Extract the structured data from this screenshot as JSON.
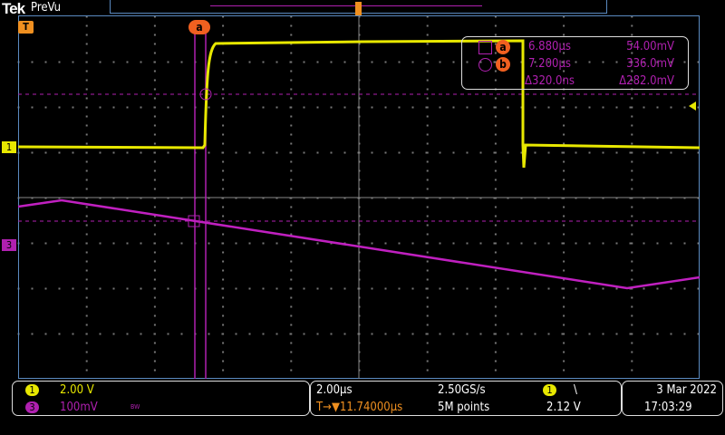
{
  "header": {
    "brand": "Tek",
    "mode": "PreVu"
  },
  "colors": {
    "ch1": "#e8e800",
    "ch3": "#b020b0",
    "cursor": "#f06020",
    "trigger": "#f09020",
    "grid": "#5a8ac0"
  },
  "markers": {
    "trigger_marker": "T",
    "ch1_marker": "1",
    "ch3_marker": "3",
    "cursor_a_label": "a",
    "cursor_b_label": "b"
  },
  "cursor_readout": {
    "a": {
      "label": "a",
      "time": "6.880µs",
      "value": "54.00mV"
    },
    "b": {
      "label": "b",
      "time": "7.200µs",
      "value": "336.0mV"
    },
    "delta": {
      "time": "Δ320.0ns",
      "value": "Δ282.0mV"
    }
  },
  "channels": [
    {
      "num": "1",
      "scale": "2.00 V",
      "color": "#e8e800"
    },
    {
      "num": "3",
      "scale": "100mV",
      "color": "#b020b0",
      "bw": "BW"
    }
  ],
  "horizontal": {
    "scale": "2.00µs",
    "sample_rate": "2.50GS/s",
    "trigger_pos": "T→▼11.74000µs",
    "record": "5M points"
  },
  "trigger": {
    "source": "1",
    "slope": "\\",
    "level": "2.12 V"
  },
  "datetime": {
    "date": "3 Mar  2022",
    "time": "17:03:29"
  }
}
